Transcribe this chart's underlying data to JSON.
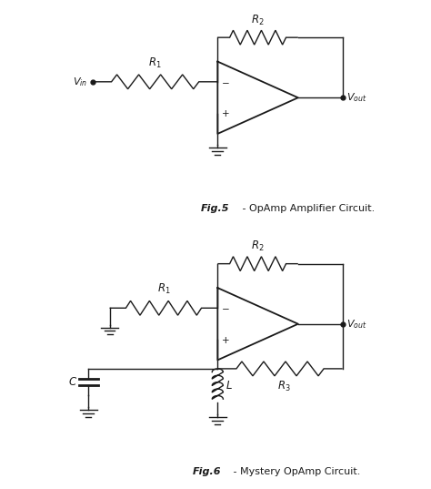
{
  "fig_width": 4.74,
  "fig_height": 5.37,
  "dpi": 100,
  "bg_color": "#ffffff",
  "line_color": "#1a1a1a",
  "line_width": 1.0,
  "fig5_caption_bold": "Fig.5",
  "fig5_caption_normal": " - OpAmp Amplifier Circuit.",
  "fig6_caption_bold": "Fig.6",
  "fig6_caption_normal": " - Mystery OpAmp Circuit."
}
